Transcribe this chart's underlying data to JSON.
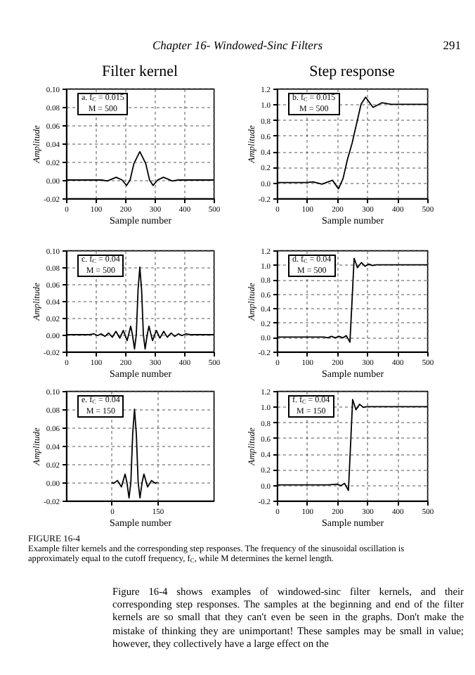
{
  "chart_data": [
    {
      "type": "line",
      "title": "Filter kernel",
      "xlabel": "Sample number",
      "ylabel": "Amplitude",
      "line_style": "solid",
      "annotations": [
        "a. f$_{C}$ = 0.015",
        "M = 500",
        "Chapter 16- Windowed-Sinc Filters",
        "291"
      ],
      "xlim": [
        0,
        500
      ],
      "xticks": [
        0,
        100,
        200,
        300,
        400,
        500
      ],
      "ylim": [
        -0.02,
        0.1
      ],
      "yticks": [
        {
          "value": -0.02,
          "label": "-0.02"
        },
        {
          "value": 0,
          "label": "0.00"
        },
        {
          "value": 0.02,
          "label": "0.02"
        },
        {
          "value": 0.04,
          "label": "0.04"
        },
        {
          "value": 0.06,
          "label": "0.06"
        },
        {
          "value": 0.08,
          "label": "0.08"
        },
        {
          "value": 0.1,
          "label": "0.10"
        }
      ],
      "grid": true,
      "x": [
        0,
        50,
        100,
        120,
        140,
        170,
        190,
        205,
        217,
        230,
        250,
        270,
        283,
        295,
        310,
        330,
        360,
        380,
        400,
        450,
        500
      ],
      "series": [
        {
          "color": "#000000",
          "values": [
            0,
            0,
            0,
            0,
            -0.001,
            0.003,
            0,
            -0.006,
            0,
            0.018,
            0.031,
            0.018,
            0,
            -0.006,
            0,
            0.003,
            -0.001,
            0,
            0,
            0,
            0
          ]
        }
      ]
    },
    {
      "type": "line",
      "title": "Step response",
      "xlabel": "Sample number",
      "ylabel": "Amplitude",
      "line_style": "solid",
      "annotations": [
        "b. f$_{C}$ = 0.015",
        "M = 500"
      ],
      "xlim": [
        0,
        500
      ],
      "xticks": [
        0,
        100,
        200,
        300,
        400,
        500
      ],
      "ylim": [
        -0.2,
        1.2
      ],
      "yticks": [
        {
          "value": -0.2,
          "label": "-0.2"
        },
        {
          "value": 0,
          "label": "0.0"
        },
        {
          "value": 0.2,
          "label": "0.2"
        },
        {
          "value": 0.4,
          "label": "0.4"
        },
        {
          "value": 0.6,
          "label": "0.6"
        },
        {
          "value": 0.8,
          "label": "0.8"
        },
        {
          "value": 1,
          "label": "1.0"
        },
        {
          "value": 1.2,
          "label": "1.2"
        }
      ],
      "grid": true,
      "x": [
        0,
        100,
        120,
        150,
        185,
        205,
        220,
        235,
        250,
        265,
        280,
        295,
        320,
        350,
        380,
        420,
        500
      ],
      "series": [
        {
          "color": "#000000",
          "values": [
            0,
            0,
            0.01,
            -0.02,
            0.03,
            -0.08,
            0.05,
            0.3,
            0.5,
            0.75,
            1.0,
            1.09,
            0.96,
            1.02,
            1.0,
            1.0,
            1.0
          ]
        }
      ]
    },
    {
      "type": "line",
      "xlabel": "Sample number",
      "ylabel": "Amplitude",
      "line_style": "solid",
      "annotations": [
        "c. f$_{C}$ = 0.04",
        "M = 500"
      ],
      "xlim": [
        0,
        500
      ],
      "xticks": [
        0,
        100,
        200,
        300,
        400,
        500
      ],
      "ylim": [
        -0.02,
        0.1
      ],
      "yticks": [
        {
          "value": -0.02,
          "label": "-0.02"
        },
        {
          "value": 0,
          "label": "0.00"
        },
        {
          "value": 0.02,
          "label": "0.02"
        },
        {
          "value": 0.04,
          "label": "0.04"
        },
        {
          "value": 0.06,
          "label": "0.06"
        },
        {
          "value": 0.08,
          "label": "0.08"
        },
        {
          "value": 0.1,
          "label": "0.10"
        }
      ],
      "grid": true,
      "x": [
        0,
        80,
        94,
        107,
        119,
        132,
        144,
        157,
        169,
        182,
        194,
        207,
        219,
        225,
        232,
        238,
        244,
        250,
        256,
        262,
        268,
        275,
        281,
        293,
        306,
        318,
        331,
        343,
        356,
        368,
        381,
        393,
        406,
        420,
        500
      ],
      "series": [
        {
          "color": "#000000",
          "values": [
            0,
            0,
            0.001,
            -0.001,
            0.001,
            -0.002,
            0.002,
            -0.003,
            0.004,
            -0.004,
            0.005,
            -0.007,
            0.01,
            0,
            -0.017,
            0,
            0.053,
            0.08,
            0.053,
            0,
            -0.017,
            0,
            0.01,
            -0.007,
            0.005,
            -0.004,
            0.004,
            -0.003,
            0.002,
            -0.002,
            0.001,
            -0.001,
            0.001,
            0,
            0
          ]
        }
      ]
    },
    {
      "type": "line",
      "xlabel": "Sample number",
      "ylabel": "Amplitude",
      "line_style": "solid",
      "annotations": [
        "d. f$_{C}$ = 0.04",
        "M = 500"
      ],
      "xlim": [
        0,
        500
      ],
      "xticks": [
        0,
        100,
        200,
        300,
        400,
        500
      ],
      "ylim": [
        -0.2,
        1.2
      ],
      "yticks": [
        {
          "value": -0.2,
          "label": "-0.2"
        },
        {
          "value": 0,
          "label": "0.0"
        },
        {
          "value": 0.2,
          "label": "0.2"
        },
        {
          "value": 0.4,
          "label": "0.4"
        },
        {
          "value": 0.6,
          "label": "0.6"
        },
        {
          "value": 0.8,
          "label": "0.8"
        },
        {
          "value": 1,
          "label": "1.0"
        },
        {
          "value": 1.2,
          "label": "1.2"
        }
      ],
      "grid": true,
      "x": [
        0,
        140,
        157,
        169,
        182,
        194,
        207,
        219,
        231,
        243,
        250,
        257,
        268,
        281,
        293,
        306,
        318,
        331,
        350,
        500
      ],
      "series": [
        {
          "color": "#000000",
          "values": [
            0,
            0,
            0,
            -0.01,
            0.01,
            -0.01,
            0.01,
            -0.01,
            0.02,
            -0.07,
            0.5,
            1.09,
            0.96,
            1.03,
            0.98,
            1.01,
            0.99,
            1.0,
            1.0,
            1.0
          ]
        }
      ]
    },
    {
      "type": "line",
      "xlabel": "Sample number",
      "ylabel": "Amplitude",
      "line_style": "solid",
      "annotations": [
        "e. f$_{C}$ = 0.04",
        "M = 150",
        "FIGURE 16-4",
        "Example filter kernels and the corresponding step responses. The frequency of the sinusoidal oscillation is approximately equal to the cutoff frequency, f$_{C}$, while M determines the kernel length.",
        "Figure 16-4 shows examples of windowed-sinc filter kernels, and their corresponding step responses. The samples at the beginning and end of the filter kernels are so small that they can't even be seen in the graphs. Don't make the mistake of thinking they are unimportant! These samples may be small in value; however, they collectively have a large effect on the"
      ],
      "xlim": [
        -150,
        335
      ],
      "xticks": [
        0,
        150
      ],
      "ylim": [
        -0.02,
        0.1
      ],
      "yticks": [
        {
          "value": -0.02,
          "label": "-0.02"
        },
        {
          "value": 0,
          "label": "0.00"
        },
        {
          "value": 0.02,
          "label": "0.02"
        },
        {
          "value": 0.04,
          "label": "0.04"
        },
        {
          "value": 0.06,
          "label": "0.06"
        },
        {
          "value": 0.08,
          "label": "0.08"
        },
        {
          "value": 0.1,
          "label": "0.10"
        }
      ],
      "grid": true,
      "x": [
        0,
        7,
        19,
        32,
        44,
        50,
        57,
        63,
        69,
        75,
        81,
        87,
        93,
        100,
        106,
        118,
        131,
        143,
        150
      ],
      "series": [
        {
          "color": "#000000",
          "values": [
            0,
            -0.001,
            0.002,
            -0.005,
            0.009,
            0,
            -0.017,
            0,
            0.053,
            0.08,
            0.053,
            0,
            -0.017,
            0,
            0.009,
            -0.005,
            0.002,
            -0.001,
            0
          ]
        }
      ]
    },
    {
      "type": "line",
      "xlabel": "Sample number",
      "ylabel": "Amplitude",
      "line_style": "solid",
      "annotations": [
        "f. f$_{C}$ = 0.04",
        "M = 150"
      ],
      "xlim": [
        0,
        500
      ],
      "xticks": [
        0,
        100,
        200,
        300,
        400,
        500
      ],
      "ylim": [
        -0.2,
        1.2
      ],
      "yticks": [
        {
          "value": -0.2,
          "label": "-0.2"
        },
        {
          "value": 0,
          "label": "0.0"
        },
        {
          "value": 0.2,
          "label": "0.2"
        },
        {
          "value": 0.4,
          "label": "0.4"
        },
        {
          "value": 0.6,
          "label": "0.6"
        },
        {
          "value": 0.8,
          "label": "0.8"
        },
        {
          "value": 1,
          "label": "1.0"
        },
        {
          "value": 1.2,
          "label": "1.2"
        }
      ],
      "grid": true,
      "x": [
        0,
        170,
        200,
        213,
        225,
        238,
        245,
        252,
        263,
        275,
        288,
        300,
        500
      ],
      "series": [
        {
          "color": "#000000",
          "values": [
            0,
            0,
            0.01,
            -0.01,
            0.02,
            -0.07,
            0.5,
            1.09,
            0.96,
            1.03,
            0.99,
            1.0,
            1.0
          ]
        }
      ]
    }
  ]
}
